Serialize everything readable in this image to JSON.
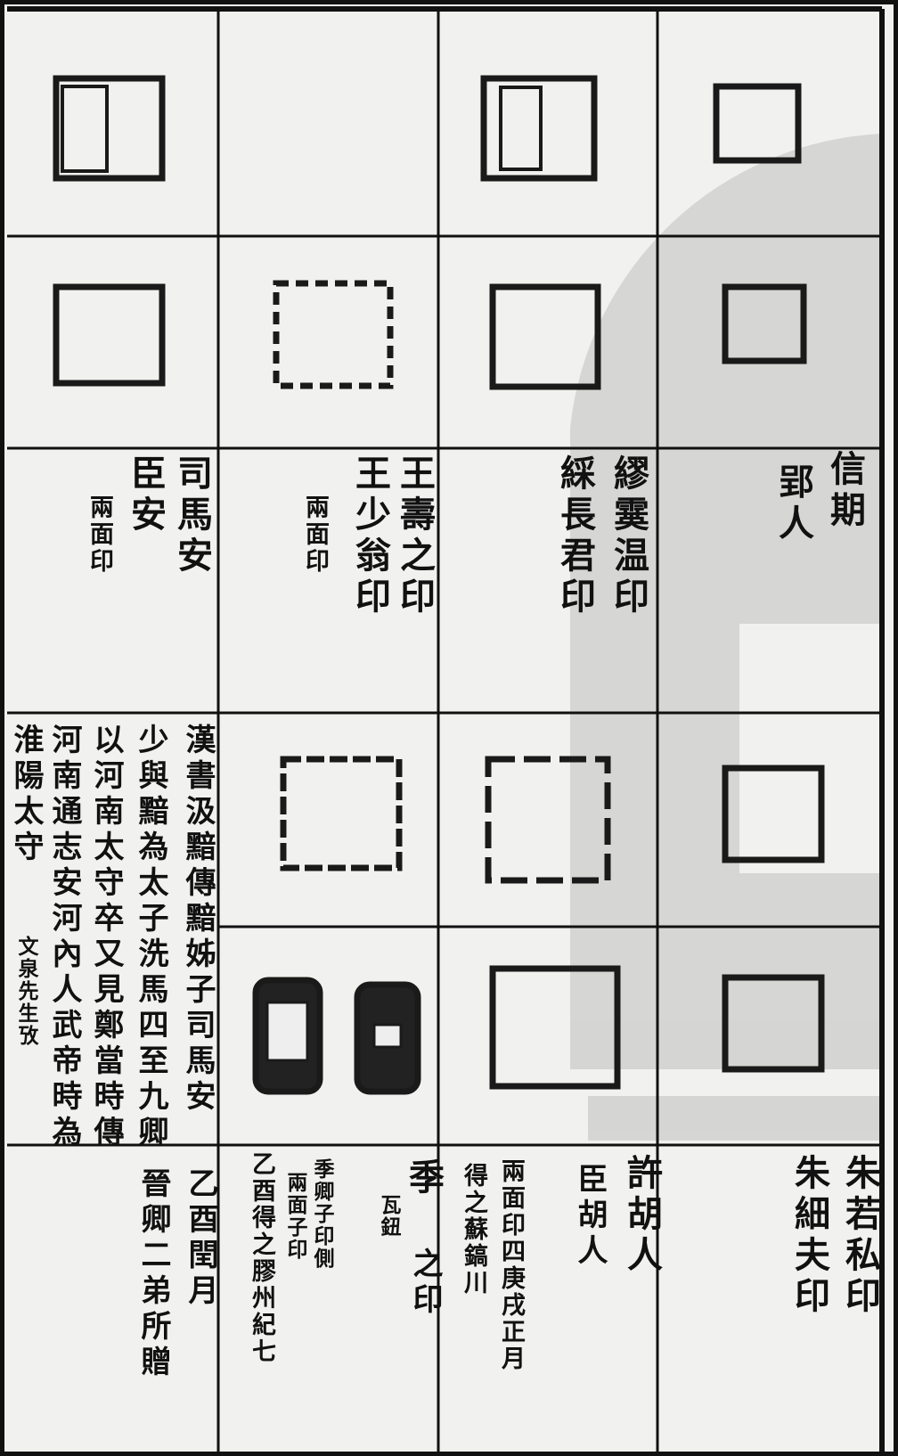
{
  "captions": [
    {
      "lines": [
        "信期",
        "郢人"
      ]
    },
    {
      "lines": [
        "繆霙温印",
        "綵長君印"
      ]
    },
    {
      "lines": [
        "王壽之印",
        "王少翁印",
        "兩面印"
      ]
    },
    {
      "lines": [
        "司馬安",
        "臣安",
        "兩面印"
      ]
    },
    {
      "lines": [
        "漢書汲黯傳黯姊子司馬安",
        "少與黯為太子洗馬四至九卿",
        "以河南太守卒又見鄭當時傳",
        "河南通志安河內人武帝時為",
        "淮陽太守",
        "文泉先生攷"
      ]
    },
    {
      "lines": [
        "朱若私印",
        "朱細夫印"
      ]
    },
    {
      "lines": [
        "許胡人",
        "臣胡人",
        "兩面印四庚戌正月",
        "得之蘇鎬川"
      ]
    },
    {
      "lines": [
        "季",
        "之印",
        "瓦鈕",
        "季卿子印側",
        "兩面子印",
        "乙酉得之膠州紀七"
      ]
    },
    {
      "lines": [
        "乙酉閏月",
        "晉卿二弟所贈"
      ]
    }
  ]
}
